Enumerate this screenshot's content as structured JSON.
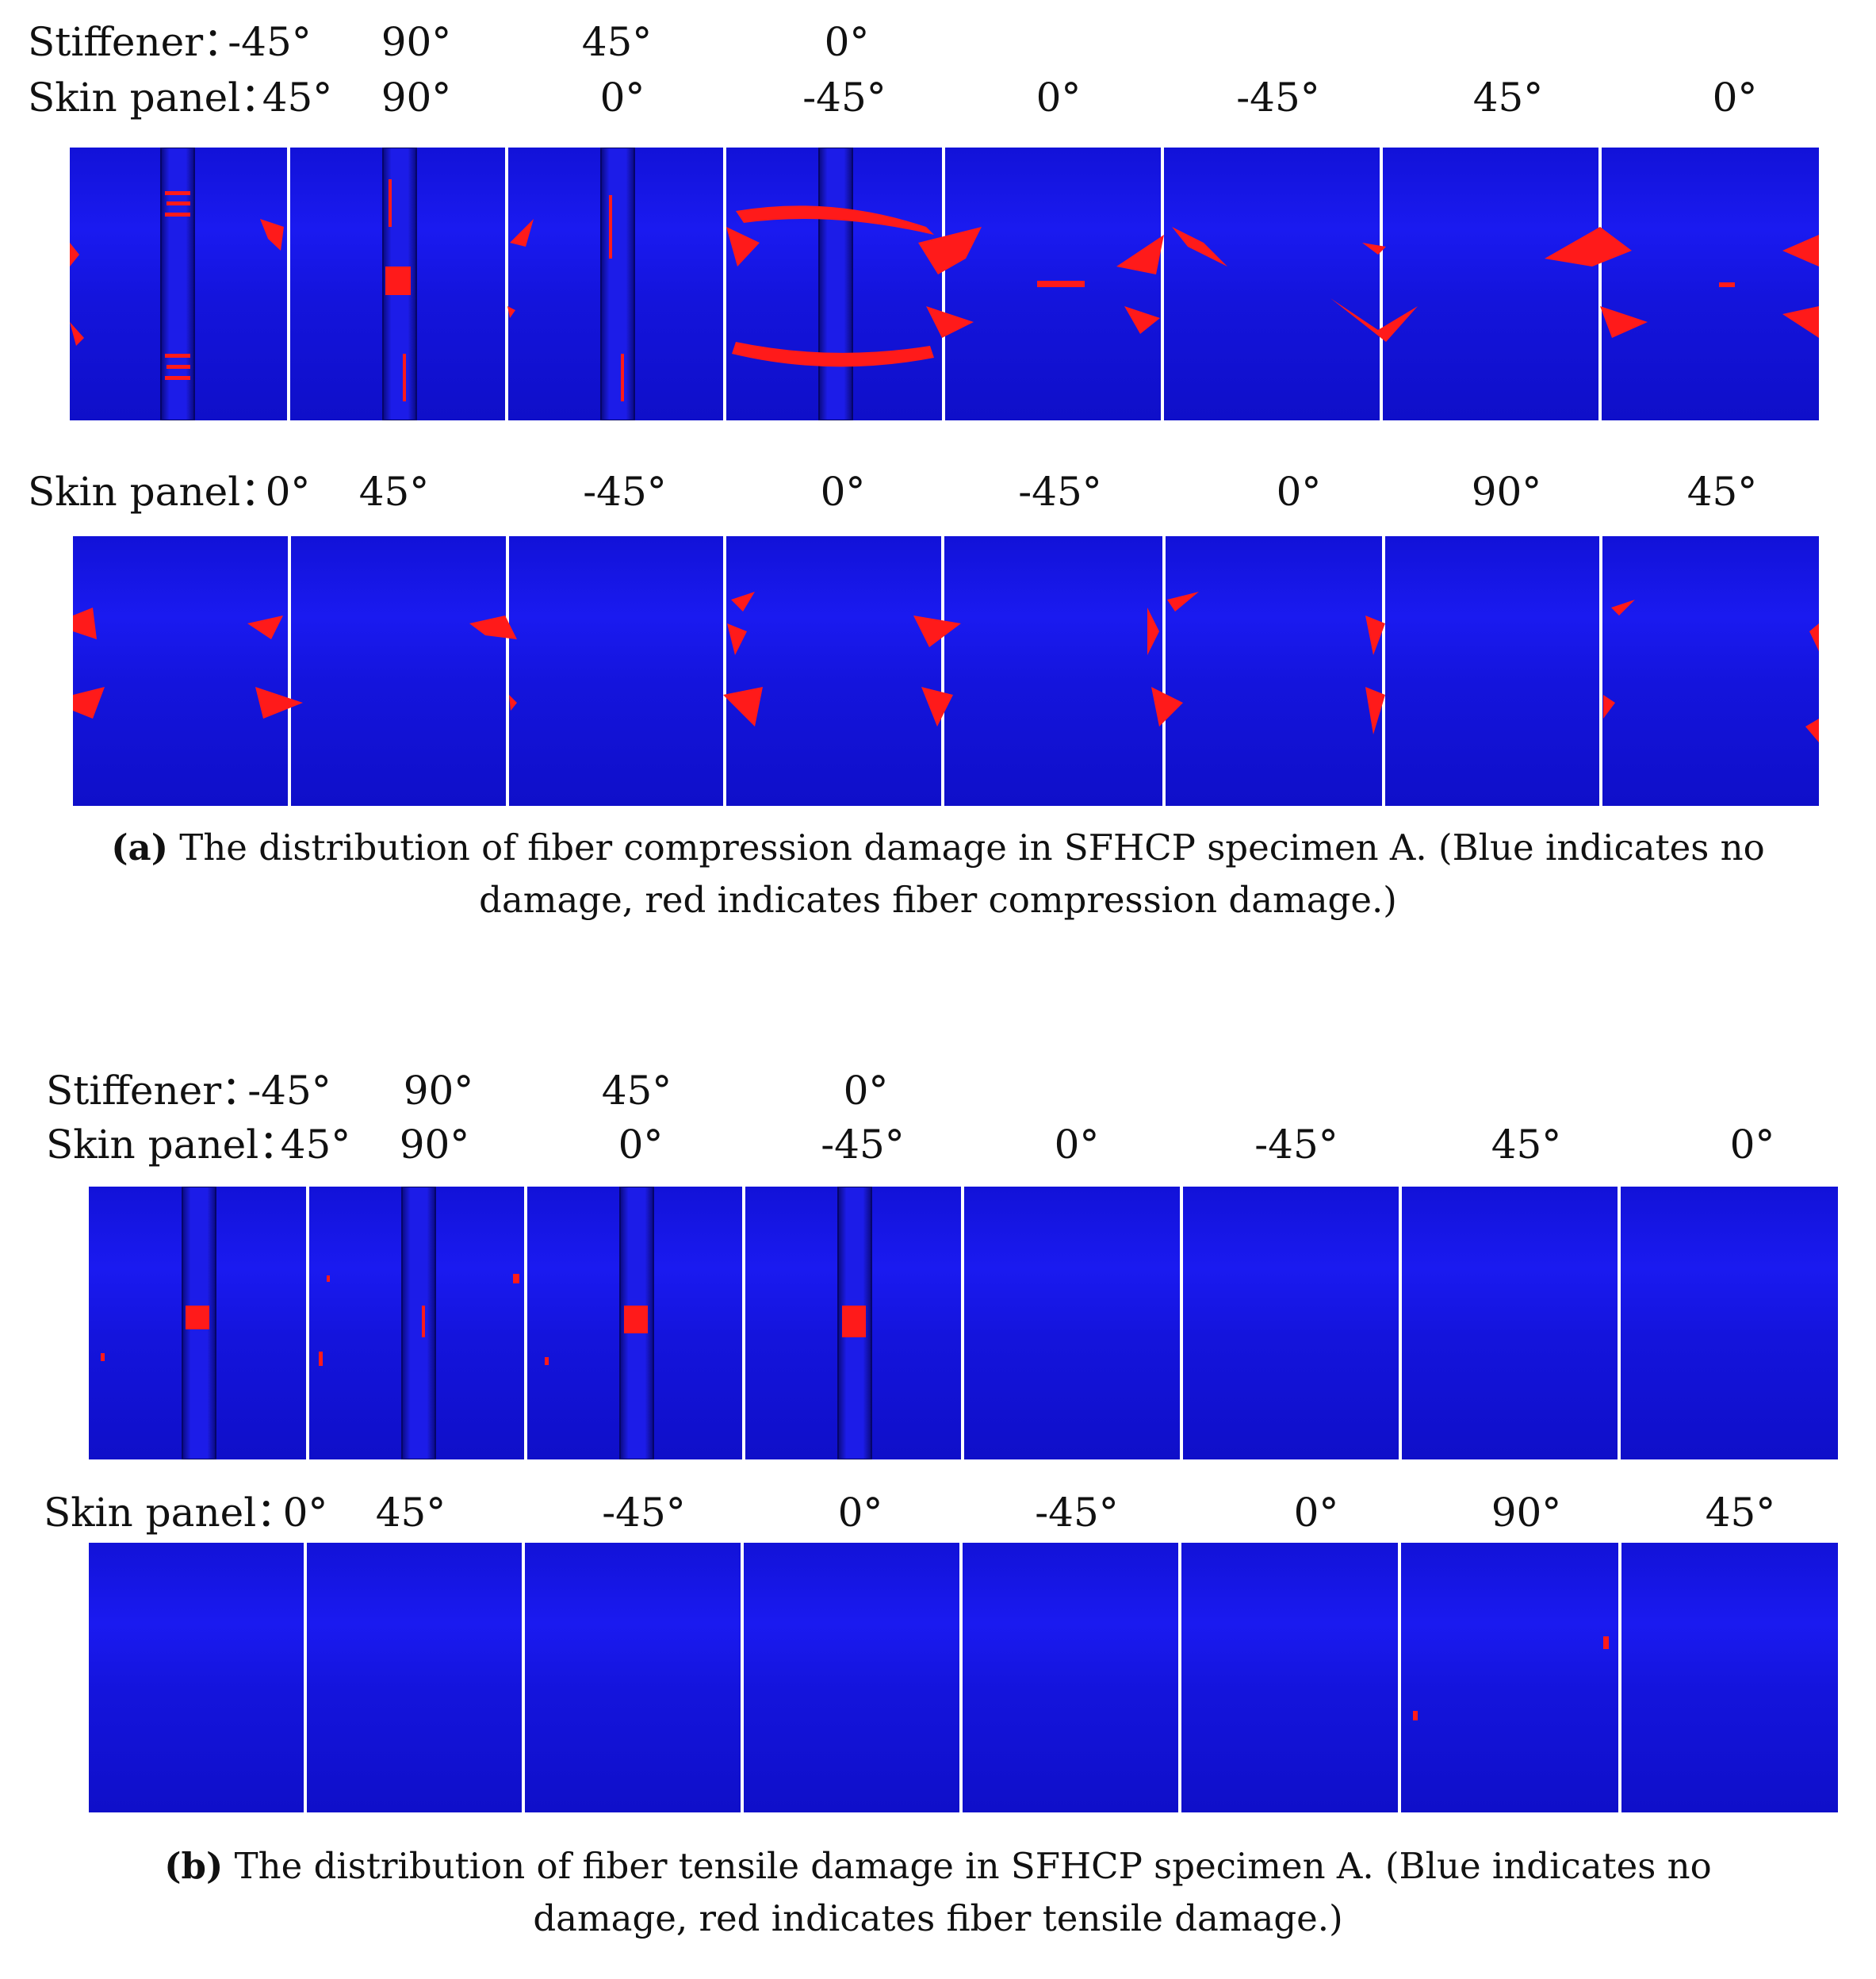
{
  "figure_a": {
    "stiffener_label": "Stiffener：",
    "stiffener_angles": [
      "-45°",
      "90°",
      "45°",
      "0°"
    ],
    "skin_label_1": "Skin panel：",
    "skin_angles_1": [
      "45°",
      "90°",
      "0°",
      "-45°",
      "0°",
      "-45°",
      "45°",
      "0°"
    ],
    "skin_label_2": "Skin panel：",
    "skin_angles_2": [
      "0°",
      "45°",
      "-45°",
      "0°",
      "-45°",
      "0°",
      "90°",
      "45°"
    ],
    "caption_letter": "(a)",
    "caption_line1": " The distribution of fiber compression damage in SFHCP specimen A. (Blue indicates no",
    "caption_line2": "damage, red indicates fiber compression damage.)"
  },
  "figure_b": {
    "stiffener_label": "Stiffener：",
    "stiffener_angles": [
      "-45°",
      "90°",
      "45°",
      "0°"
    ],
    "skin_label_1": "Skin panel：",
    "skin_angles_1": [
      "45°",
      "90°",
      "0°",
      "-45°",
      "0°",
      "-45°",
      "45°",
      "0°"
    ],
    "skin_label_2": "Skin panel：",
    "skin_angles_2": [
      "0°",
      "45°",
      "-45°",
      "0°",
      "-45°",
      "0°",
      "90°",
      "45°"
    ],
    "caption_letter": "(b)",
    "caption_line1": " The distribution of fiber tensile damage in SFHCP specimen A. (Blue indicates no",
    "caption_line2": "damage, red indicates fiber tensile damage.)"
  },
  "colors": {
    "no_damage": "#1515e6",
    "damage": "#ff1a1a"
  }
}
